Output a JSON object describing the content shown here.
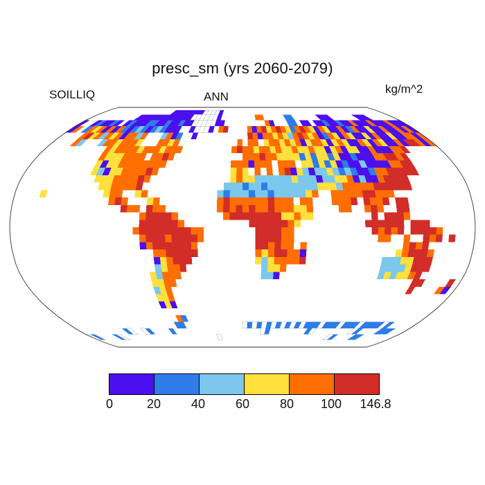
{
  "title": "presc_sm (yrs 2060-2079)",
  "subtitle_left": "SOILLIQ",
  "subtitle_center": "ANN",
  "units": "kg/m^2",
  "colorbar": {
    "ticks": [
      "0",
      "20",
      "40",
      "60",
      "80",
      "100",
      "146.8"
    ],
    "colors": [
      "#4B0FF0",
      "#2E7CE8",
      "#7CC7EC",
      "#FFE03C",
      "#FF6E00",
      "#D22D28"
    ]
  },
  "chart_data": {
    "type": "heatmap",
    "title": "presc_sm (yrs 2060-2079)",
    "variable": "SOILLIQ",
    "season": "ANN",
    "units": "kg/m^2",
    "projection": "robinson",
    "legend_position": "bottom",
    "levels": [
      0,
      20,
      40,
      60,
      80,
      100,
      146.8
    ],
    "bin_colors": [
      "#4B0FF0",
      "#2E7CE8",
      "#7CC7EC",
      "#FFE03C",
      "#FF6E00",
      "#D22D28"
    ],
    "palette": {
      "0": "#4B0FF0",
      "1": "#2E7CE8",
      "2": "#7CC7EC",
      "3": "#FFE03C",
      "4": "#FF6E00",
      "5": "#D22D28",
      "w": "#FFFFFF"
    },
    "grid": {
      "cols": 72,
      "rows": 36,
      "lon0": -180,
      "lat0": 90,
      "dlon": 5,
      "dlat": 5,
      "segments": {
        "1": [
          [
            18,
            "00000000wwww0"
          ]
        ],
        "2": [
          [
            11,
            "000000000"
          ],
          [
            20,
            "000"
          ],
          [
            23,
            "0wwwwww0"
          ],
          [
            39,
            "44"
          ],
          [
            46,
            "11"
          ],
          [
            54,
            "000"
          ],
          [
            63,
            "000"
          ]
        ],
        "3": [
          [
            0,
            "0"
          ],
          [
            3,
            "010010"
          ],
          [
            10,
            "01000110010010"
          ],
          [
            24,
            "0wwwww00"
          ],
          [
            41,
            "40"
          ],
          [
            46,
            "11"
          ],
          [
            49,
            "00"
          ],
          [
            52,
            "001001"
          ],
          [
            58,
            "00400040004000"
          ]
        ],
        "4": [
          [
            0,
            "04"
          ],
          [
            3,
            "143404"
          ],
          [
            9,
            "04101210121000"
          ],
          [
            25,
            "0www0"
          ],
          [
            31,
            "45"
          ],
          [
            37,
            "404534"
          ],
          [
            43,
            "54314543043004014003004004040"
          ]
        ],
        "5": [
          [
            4,
            "45342"
          ],
          [
            9,
            "43404424"
          ],
          [
            20,
            "2401"
          ],
          [
            26,
            "0"
          ],
          [
            37,
            "540443"
          ],
          [
            43,
            "43245434014304300304003004404"
          ]
        ],
        "6": [
          [
            4,
            "42"
          ],
          [
            9,
            "24434443"
          ],
          [
            20,
            "4434"
          ],
          [
            35,
            "4"
          ],
          [
            37,
            "44"
          ],
          [
            40,
            "34434"
          ],
          [
            45,
            "340344303430043043004055404"
          ]
        ],
        "7": [
          [
            11,
            "43444434443444"
          ],
          [
            34,
            "45"
          ],
          [
            36,
            "44344343"
          ],
          [
            44,
            "3433433034033004000445"
          ]
        ],
        "8": [
          [
            11,
            "43334444.4454"
          ],
          [
            36,
            "44454433"
          ],
          [
            44,
            "33131331300100"
          ],
          [
            58,
            "04455"
          ],
          [
            63,
            "45"
          ]
        ],
        "9": [
          [
            11,
            "303344444444"
          ],
          [
            34,
            "4440444"
          ],
          [
            42,
            "44"
          ],
          [
            44,
            "4.331"
          ],
          [
            49,
            "313010020000"
          ],
          [
            61,
            "4455"
          ]
        ],
        "10": [
          [
            11,
            "32033444454"
          ],
          [
            34,
            "343"
          ],
          [
            38,
            "4"
          ],
          [
            40,
            "4"
          ],
          [
            42,
            "450"
          ],
          [
            45,
            "32022"
          ],
          [
            50,
            "321210014455555"
          ]
        ],
        "11": [
          [
            12,
            "333444454"
          ],
          [
            34,
            "3433"
          ],
          [
            38,
            "222222"
          ],
          [
            44,
            "322"
          ],
          [
            47,
            "20223"
          ],
          [
            52,
            "34"
          ],
          [
            54,
            "020045555"
          ]
        ],
        "12": [
          [
            13,
            "3344445"
          ],
          [
            33,
            "22212212222"
          ],
          [
            44,
            "22223"
          ],
          [
            49,
            "3324444"
          ],
          [
            56,
            "4555555"
          ]
        ],
        "13": [
          [
            4,
            "3"
          ],
          [
            14,
            "344"
          ],
          [
            19,
            "34"
          ],
          [
            32,
            "212221221222"
          ],
          [
            44,
            "2234"
          ],
          [
            50,
            "444445"
          ],
          [
            56,
            "5444"
          ]
        ],
        "14": [
          [
            15,
            "454"
          ],
          [
            21,
            "34"
          ],
          [
            32,
            "454444445444"
          ],
          [
            45,
            "44"
          ],
          [
            50,
            "4445"
          ],
          [
            55,
            "5445"
          ],
          [
            60,
            "55"
          ]
        ],
        "15": [
          [
            17,
            "544"
          ],
          [
            21,
            "544"
          ],
          [
            32,
            "4545454454443"
          ],
          [
            45,
            "34"
          ],
          [
            51,
            "44"
          ],
          [
            55,
            "454"
          ],
          [
            60,
            "55"
          ]
        ],
        "16": [
          [
            20,
            "455554"
          ],
          [
            33,
            "455555"
          ],
          [
            39,
            "55533"
          ],
          [
            44,
            "433"
          ],
          [
            56,
            "5"
          ],
          [
            58,
            "55"
          ],
          [
            60,
            "54"
          ]
        ],
        "17": [
          [
            20,
            "5555554"
          ],
          [
            37,
            "55555543"
          ],
          [
            55,
            "555555"
          ],
          [
            62,
            "555"
          ]
        ],
        "18": [
          [
            19,
            "45555555544"
          ],
          [
            38,
            "555544"
          ],
          [
            56,
            "54"
          ],
          [
            58,
            "54"
          ],
          [
            60,
            "5"
          ],
          [
            62,
            "55554"
          ]
        ],
        "19": [
          [
            20,
            "4555455554"
          ],
          [
            38,
            "555544"
          ],
          [
            57,
            "44"
          ],
          [
            61,
            "4"
          ],
          [
            64,
            "545"
          ],
          [
            68,
            "5"
          ]
        ],
        "20": [
          [
            20,
            "045555554"
          ],
          [
            38,
            "554544"
          ],
          [
            45,
            "4"
          ],
          [
            61,
            "4545"
          ]
        ],
        "21": [
          [
            22,
            "4455555"
          ],
          [
            38,
            "434554"
          ],
          [
            44,
            "40"
          ],
          [
            60,
            "345554"
          ]
        ],
        "22": [
          [
            22,
            "034555"
          ],
          [
            38,
            "323444"
          ],
          [
            44,
            "45"
          ],
          [
            58,
            "22233555"
          ]
        ],
        "23": [
          [
            22,
            "23445"
          ],
          [
            39,
            "2334"
          ],
          [
            58,
            "22223555"
          ]
        ],
        "24": [
          [
            21,
            "32444"
          ],
          [
            39,
            "220"
          ],
          [
            58,
            "2323345"
          ]
        ],
        "25": [
          [
            21,
            "3344"
          ],
          [
            64,
            "55"
          ],
          [
            70,
            "5"
          ]
        ],
        "26": [
          [
            21,
            "234"
          ],
          [
            64,
            "5"
          ],
          [
            69,
            "40"
          ]
        ],
        "27": [
          [
            21,
            "334"
          ]
        ],
        "28": [
          [
            21,
            "030"
          ]
        ],
        "30": [
          [
            23,
            "41"
          ]
        ],
        "31": [
          [
            22,
            "11"
          ],
          [
            36,
            "w1w1w1w1w1w1w1"
          ],
          [
            50,
            "11w111w111w1111w1"
          ]
        ],
        "32": [
          [
            10,
            "1w"
          ],
          [
            14,
            "w1"
          ],
          [
            20,
            "1"
          ],
          [
            40,
            "w1"
          ],
          [
            50,
            "1w"
          ],
          [
            60,
            "w1"
          ],
          [
            66,
            "111"
          ]
        ],
        "33": [
          [
            0,
            "w1"
          ],
          [
            6,
            "1w"
          ],
          [
            30,
            "w"
          ],
          [
            56,
            "w1"
          ],
          [
            62,
            "11"
          ]
        ]
      }
    }
  }
}
